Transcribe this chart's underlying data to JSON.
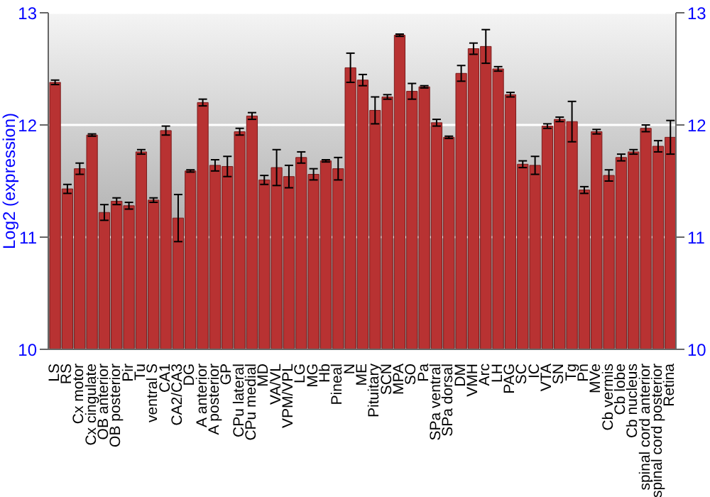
{
  "chart_data": {
    "type": "bar",
    "ylabel": "Log2 (expression)",
    "categories": [
      "LS",
      "RS",
      "Cx motor",
      "Cx cingulate",
      "OB anterior",
      "OB posterior",
      "Pir",
      "Tu",
      "ventral S",
      "CA1",
      "CA2/CA3",
      "DG",
      "A anterior",
      "A posterior",
      "GP",
      "CPu lateral",
      "CPu medial",
      "MD",
      "VA/VL",
      "VPM/VPL",
      "LG",
      "MG",
      "Hb",
      "Pineal",
      "N",
      "ME",
      "Pituitary",
      "SCN",
      "MPA",
      "SO",
      "Pa",
      "SPa ventral",
      "SPa dorsal",
      "DM",
      "VMH",
      "Arc",
      "LH",
      "PAG",
      "SC",
      "IC",
      "VTA",
      "SN",
      "Tg",
      "Pn",
      "MVe",
      "Cb vermis",
      "Cb lobe",
      "Cb nucleus",
      "spinal cord anterior",
      "spinal cord posterior",
      "Retina"
    ],
    "values": [
      12.38,
      11.43,
      11.61,
      11.91,
      11.22,
      11.32,
      11.28,
      11.76,
      11.33,
      11.95,
      11.17,
      11.59,
      12.2,
      11.64,
      11.63,
      11.94,
      12.08,
      11.51,
      11.62,
      11.54,
      11.71,
      11.56,
      11.68,
      11.61,
      12.51,
      12.4,
      12.13,
      12.25,
      12.8,
      12.3,
      12.34,
      12.02,
      11.89,
      12.46,
      12.68,
      12.7,
      12.5,
      12.27,
      11.65,
      11.64,
      11.99,
      12.05,
      12.03,
      11.42,
      11.94,
      11.55,
      11.71,
      11.76,
      11.97,
      11.81,
      11.89
    ],
    "errors": [
      0.02,
      0.04,
      0.05,
      0.01,
      0.07,
      0.03,
      0.03,
      0.02,
      0.02,
      0.04,
      0.21,
      0.01,
      0.03,
      0.05,
      0.09,
      0.03,
      0.03,
      0.04,
      0.16,
      0.1,
      0.05,
      0.05,
      0.01,
      0.1,
      0.13,
      0.05,
      0.12,
      0.02,
      0.01,
      0.07,
      0.01,
      0.03,
      0.01,
      0.07,
      0.05,
      0.15,
      0.02,
      0.02,
      0.03,
      0.08,
      0.02,
      0.02,
      0.18,
      0.03,
      0.02,
      0.05,
      0.03,
      0.02,
      0.03,
      0.05,
      0.15
    ],
    "color": "#b83232",
    "ylim": [
      10,
      13
    ],
    "yticks": [
      10,
      11,
      12,
      13
    ],
    "y2lim": [
      10,
      13
    ],
    "y2ticks": [
      10,
      11,
      12,
      13
    ],
    "grid": "y",
    "legend": false
  }
}
